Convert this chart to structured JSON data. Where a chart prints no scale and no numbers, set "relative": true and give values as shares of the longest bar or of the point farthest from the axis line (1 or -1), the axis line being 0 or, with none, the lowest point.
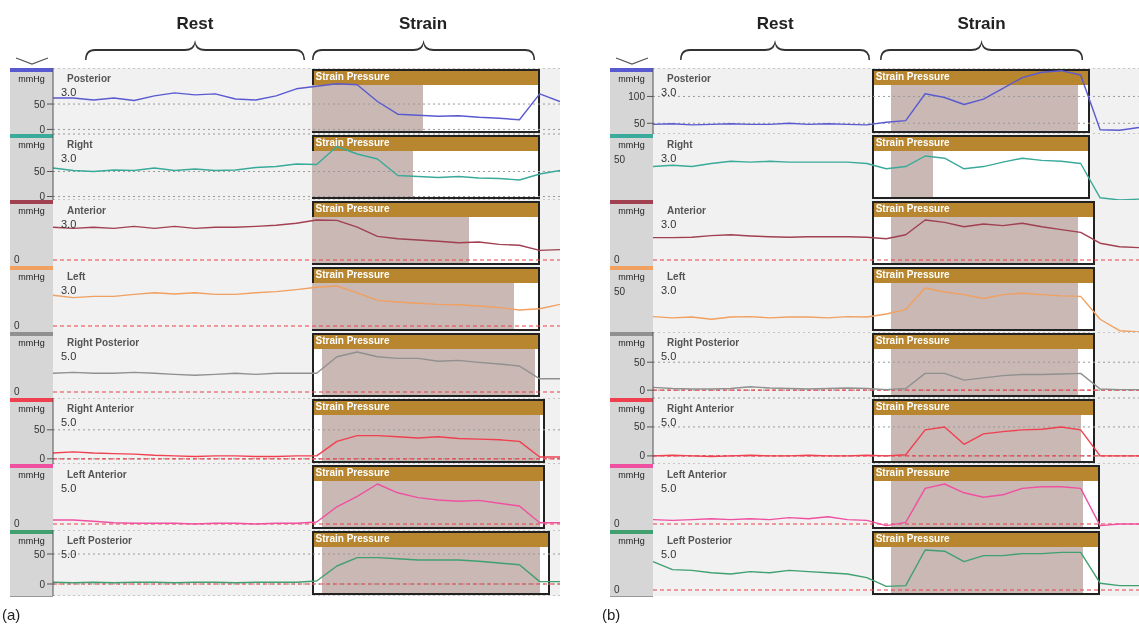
{
  "chart_data": [
    {
      "type": "line",
      "ylabel": "mmHg",
      "grid": "y",
      "categories": [
        null,
        null,
        null,
        null,
        null,
        null,
        null,
        null,
        null,
        null,
        null,
        null,
        null,
        null,
        null,
        null,
        null,
        null,
        null,
        null,
        null,
        null,
        null,
        null,
        null,
        null
      ],
      "ylim": [
        -9,
        121
      ],
      "yticks": [
        0,
        50
      ],
      "series": [
        {
          "name": "Posterior",
          "color": "#5a5ad0",
          "values": [
            62,
            62,
            58,
            62,
            57,
            66,
            72,
            68,
            70,
            60,
            58,
            66,
            80,
            85,
            90,
            88,
            55,
            30,
            28,
            26,
            27,
            24,
            22,
            19,
            70,
            55
          ]
        }
      ],
      "annotations": [
        "3.0",
        "Strain Pressure",
        "Rest",
        "Strain"
      ]
    },
    {
      "type": "line",
      "ylabel": "mmHg",
      "grid": "y",
      "categories": [
        null,
        null,
        null,
        null,
        null,
        null,
        null,
        null,
        null,
        null,
        null,
        null,
        null,
        null,
        null,
        null,
        null,
        null,
        null,
        null,
        null,
        null,
        null,
        null,
        null,
        null
      ],
      "ylim": [
        -7,
        125
      ],
      "yticks": [
        0,
        50
      ],
      "series": [
        {
          "name": "Right",
          "color": "#3aaa9a",
          "values": [
            57,
            52,
            50,
            53,
            52,
            57,
            52,
            55,
            52,
            53,
            58,
            60,
            65,
            64,
            100,
            85,
            75,
            42,
            40,
            38,
            40,
            37,
            36,
            33,
            45,
            52
          ]
        }
      ],
      "annotations": [
        "3.0",
        "Strain Pressure"
      ]
    },
    {
      "type": "line",
      "ylabel": "mmHg",
      "relative": true,
      "categories": [
        null,
        null,
        null,
        null,
        null,
        null,
        null,
        null,
        null,
        null,
        null,
        null,
        null,
        null,
        null,
        null,
        null,
        null,
        null,
        null,
        null,
        null,
        null,
        null,
        null,
        null
      ],
      "series": [
        {
          "name": "Anterior",
          "color": "#a04050",
          "values": [
            0.82,
            0.79,
            0.82,
            0.79,
            0.84,
            0.79,
            0.84,
            0.79,
            0.82,
            0.82,
            0.84,
            0.87,
            0.92,
            1,
            0.99,
            0.82,
            0.59,
            0.53,
            0.5,
            0.47,
            0.43,
            0.45,
            0.39,
            0.37,
            0.24,
            0.26
          ]
        }
      ],
      "ref_lines": [
        {
          "axis": "y",
          "value": 0,
          "color": "#e8404a",
          "line_style": "dashed"
        }
      ],
      "annotations": [
        "3.0",
        "Strain Pressure",
        "0"
      ]
    },
    {
      "type": "line",
      "ylabel": "mmHg",
      "relative": true,
      "categories": [
        null,
        null,
        null,
        null,
        null,
        null,
        null,
        null,
        null,
        null,
        null,
        null,
        null,
        null,
        null,
        null,
        null,
        null,
        null,
        null,
        null,
        null,
        null,
        null,
        null,
        null
      ],
      "series": [
        {
          "name": "Left",
          "color": "#f0a060",
          "values": [
            0.77,
            0.71,
            0.74,
            0.74,
            0.79,
            0.83,
            0.8,
            0.83,
            0.79,
            0.79,
            0.83,
            0.86,
            0.91,
            0.97,
            1,
            0.83,
            0.64,
            0.6,
            0.57,
            0.54,
            0.53,
            0.5,
            0.46,
            0.4,
            0.43,
            0.54
          ]
        }
      ],
      "ref_lines": [
        {
          "axis": "y",
          "value": 0,
          "color": "#e8404a",
          "line_style": "dashed"
        }
      ],
      "annotations": [
        "3.0",
        "Strain Pressure",
        "0"
      ]
    },
    {
      "type": "line",
      "ylabel": "mmHg",
      "relative": true,
      "categories": [
        null,
        null,
        null,
        null,
        null,
        null,
        null,
        null,
        null,
        null,
        null,
        null,
        null,
        null,
        null,
        null,
        null,
        null,
        null,
        null,
        null,
        null,
        null,
        null,
        null,
        null
      ],
      "series": [
        {
          "name": "Right Posterior",
          "color": "#909090",
          "values": [
            0.47,
            0.49,
            0.47,
            0.47,
            0.49,
            0.47,
            0.44,
            0.42,
            0.44,
            0.47,
            0.44,
            0.47,
            0.47,
            0.47,
            0.88,
            1,
            0.88,
            0.84,
            0.84,
            0.77,
            0.79,
            0.74,
            0.7,
            0.65,
            0.33,
            0.33
          ]
        }
      ],
      "ref_lines": [
        {
          "axis": "y",
          "value": 0,
          "color": "#e8404a",
          "line_style": "dashed"
        }
      ],
      "annotations": [
        "5.0",
        "Strain Pressure",
        "0"
      ]
    },
    {
      "type": "line",
      "ylabel": "mmHg",
      "grid": "y",
      "categories": [
        null,
        null,
        null,
        null,
        null,
        null,
        null,
        null,
        null,
        null,
        null,
        null,
        null,
        null,
        null,
        null,
        null,
        null,
        null,
        null,
        null,
        null,
        null,
        null,
        null,
        null
      ],
      "ylim": [
        -9,
        105
      ],
      "yticks": [
        0,
        50
      ],
      "series": [
        {
          "name": "Right Anterior",
          "color": "#f04050",
          "values": [
            10,
            12,
            10,
            9,
            8,
            6,
            5,
            4,
            5,
            5,
            4,
            4,
            5,
            5,
            30,
            40,
            40,
            38,
            36,
            38,
            35,
            34,
            33,
            30,
            3,
            3
          ]
        }
      ],
      "ref_lines": [
        {
          "axis": "y",
          "value": 0,
          "color": "#e8404a",
          "line_style": "dashed"
        }
      ],
      "annotations": [
        "5.0",
        "Strain Pressure"
      ]
    },
    {
      "type": "line",
      "ylabel": "mmHg",
      "relative": true,
      "categories": [
        null,
        null,
        null,
        null,
        null,
        null,
        null,
        null,
        null,
        null,
        null,
        null,
        null,
        null,
        null,
        null,
        null,
        null,
        null,
        null,
        null,
        null,
        null,
        null,
        null,
        null
      ],
      "series": [
        {
          "name": "Left Anterior",
          "color": "#f050a0",
          "values": [
            0.1,
            0.1,
            0.07,
            0.03,
            0.02,
            0.02,
            0.02,
            0,
            0.02,
            0.02,
            0,
            0.02,
            0.02,
            0.05,
            0.43,
            0.69,
            1,
            0.78,
            0.66,
            0.6,
            0.57,
            0.59,
            0.52,
            0.45,
            0.03,
            0.03
          ]
        }
      ],
      "ref_lines": [
        {
          "axis": "y",
          "value": 0,
          "color": "#e8404a",
          "line_style": "dashed"
        }
      ],
      "annotations": [
        "5.0",
        "Strain Pressure",
        "0"
      ]
    },
    {
      "type": "line",
      "ylabel": "mmHg",
      "grid": "y",
      "categories": [
        null,
        null,
        null,
        null,
        null,
        null,
        null,
        null,
        null,
        null,
        null,
        null,
        null,
        null,
        null,
        null,
        null,
        null,
        null,
        null,
        null,
        null,
        null,
        null,
        null,
        null
      ],
      "ylim": [
        -20,
        90
      ],
      "yticks": [
        0,
        50
      ],
      "series": [
        {
          "name": "Left Posterior",
          "color": "#40a070",
          "values": [
            3,
            2,
            3,
            2,
            3,
            3,
            2,
            3,
            3,
            2,
            3,
            3,
            3,
            5,
            30,
            44,
            44,
            42,
            40,
            40,
            40,
            38,
            35,
            32,
            4,
            4
          ]
        }
      ],
      "ref_lines": [
        {
          "axis": "y",
          "value": 0,
          "color": "#e8404a",
          "line_style": "dashed"
        }
      ],
      "annotations": [
        "5.0",
        "Strain Pressure",
        "(a)"
      ]
    },
    {
      "type": "line",
      "ylabel": "mmHg",
      "grid": "y",
      "categories": [
        null,
        null,
        null,
        null,
        null,
        null,
        null,
        null,
        null,
        null,
        null,
        null,
        null,
        null,
        null,
        null,
        null,
        null,
        null,
        null,
        null,
        null,
        null,
        null,
        null,
        null
      ],
      "ylim": [
        30,
        153
      ],
      "yticks": [
        50,
        100
      ],
      "series": [
        {
          "name": "Posterior",
          "color": "#5a5ad0",
          "values": [
            48,
            49,
            47,
            48,
            49,
            48,
            48,
            50,
            48,
            49,
            48,
            47,
            52,
            55,
            105,
            98,
            85,
            95,
            115,
            135,
            145,
            148,
            140,
            38,
            37,
            42
          ]
        }
      ],
      "annotations": [
        "3.0",
        "Strain Pressure",
        "Rest",
        "Strain"
      ]
    },
    {
      "type": "line",
      "ylabel": "mmHg",
      "relative": true,
      "categories": [
        null,
        null,
        null,
        null,
        null,
        null,
        null,
        null,
        null,
        null,
        null,
        null,
        null,
        null,
        null,
        null,
        null,
        null,
        null,
        null,
        null,
        null,
        null,
        null,
        null,
        null
      ],
      "series": [
        {
          "name": "Right",
          "color": "#3aaa9a",
          "values": [
            0.76,
            0.79,
            0.76,
            0.83,
            0.88,
            0.86,
            0.88,
            0.86,
            0.86,
            0.86,
            0.86,
            0.83,
            0.71,
            0.76,
            1,
            0.95,
            0.71,
            0.76,
            0.86,
            0.95,
            0.9,
            0.88,
            0.83,
            0.05,
            0,
            0.02
          ]
        }
      ],
      "annotations": [
        "3.0",
        "Strain Pressure",
        "50"
      ]
    },
    {
      "type": "line",
      "ylabel": "mmHg",
      "relative": true,
      "categories": [
        null,
        null,
        null,
        null,
        null,
        null,
        null,
        null,
        null,
        null,
        null,
        null,
        null,
        null,
        null,
        null,
        null,
        null,
        null,
        null,
        null,
        null,
        null,
        null,
        null,
        null
      ],
      "series": [
        {
          "name": "Anterior",
          "color": "#a04050",
          "values": [
            0.56,
            0.56,
            0.57,
            0.61,
            0.63,
            0.6,
            0.58,
            0.57,
            0.58,
            0.58,
            0.58,
            0.57,
            0.53,
            0.63,
            1,
            0.94,
            0.83,
            0.9,
            0.86,
            0.92,
            0.83,
            0.76,
            0.69,
            0.42,
            0.33,
            0.31
          ]
        }
      ],
      "ref_lines": [
        {
          "axis": "y",
          "value": 0,
          "color": "#e8404a",
          "line_style": "dashed"
        }
      ],
      "annotations": [
        "3.0",
        "Strain Pressure",
        "0"
      ]
    },
    {
      "type": "line",
      "ylabel": "mmHg",
      "relative": true,
      "categories": [
        null,
        null,
        null,
        null,
        null,
        null,
        null,
        null,
        null,
        null,
        null,
        null,
        null,
        null,
        null,
        null,
        null,
        null,
        null,
        null,
        null,
        null,
        null,
        null,
        null,
        null
      ],
      "series": [
        {
          "name": "Left",
          "color": "#f0a060",
          "values": [
            0.35,
            0.32,
            0.34,
            0.29,
            0.34,
            0.35,
            0.32,
            0.34,
            0.34,
            0.32,
            0.35,
            0.34,
            0.41,
            0.51,
            1,
            0.91,
            0.85,
            0.76,
            0.85,
            0.88,
            0.85,
            0.82,
            0.81,
            0.29,
            0.03,
            0
          ]
        }
      ],
      "annotations": [
        "3.0",
        "Strain Pressure",
        "50"
      ]
    },
    {
      "type": "line",
      "ylabel": "mmHg",
      "grid": "y",
      "categories": [
        null,
        null,
        null,
        null,
        null,
        null,
        null,
        null,
        null,
        null,
        null,
        null,
        null,
        null,
        null,
        null,
        null,
        null,
        null,
        null,
        null,
        null,
        null,
        null,
        null,
        null
      ],
      "ylim": [
        -14,
        104
      ],
      "yticks": [
        0,
        50
      ],
      "series": [
        {
          "name": "Right Posterior",
          "color": "#909090",
          "values": [
            5,
            3,
            2,
            2,
            3,
            6,
            4,
            3,
            2,
            3,
            4,
            3,
            1,
            3,
            30,
            30,
            18,
            22,
            26,
            28,
            28,
            29,
            30,
            2,
            1,
            1
          ]
        }
      ],
      "ref_lines": [
        {
          "axis": "y",
          "value": 0,
          "color": "#e8404a",
          "line_style": "dashed"
        }
      ],
      "annotations": [
        "5.0",
        "Strain Pressure"
      ]
    },
    {
      "type": "line",
      "ylabel": "mmHg",
      "grid": "y",
      "categories": [
        null,
        null,
        null,
        null,
        null,
        null,
        null,
        null,
        null,
        null,
        null,
        null,
        null,
        null,
        null,
        null,
        null,
        null,
        null,
        null,
        null,
        null,
        null,
        null,
        null,
        null
      ],
      "ylim": [
        -14,
        100
      ],
      "yticks": [
        0,
        50
      ],
      "series": [
        {
          "name": "Right Anterior",
          "color": "#f04050",
          "values": [
            0,
            1,
            0,
            -1,
            0,
            1,
            0,
            0,
            1,
            0,
            0,
            1,
            0,
            2,
            45,
            50,
            20,
            38,
            42,
            45,
            46,
            50,
            45,
            0,
            0,
            0
          ]
        }
      ],
      "ref_lines": [
        {
          "axis": "y",
          "value": 0,
          "color": "#e8404a",
          "line_style": "dashed"
        }
      ],
      "annotations": [
        "5.0",
        "Strain Pressure"
      ]
    },
    {
      "type": "line",
      "ylabel": "mmHg",
      "relative": true,
      "categories": [
        null,
        null,
        null,
        null,
        null,
        null,
        null,
        null,
        null,
        null,
        null,
        null,
        null,
        null,
        null,
        null,
        null,
        null,
        null,
        null,
        null,
        null,
        null,
        null,
        null,
        null
      ],
      "series": [
        {
          "name": "Left Anterior",
          "color": "#f050a0",
          "values": [
            0.11,
            0.09,
            0.11,
            0.13,
            0.11,
            0.13,
            0.11,
            0.16,
            0.13,
            0.18,
            0.11,
            0.09,
            -0.04,
            0.04,
            0.89,
            1,
            0.78,
            0.67,
            0.73,
            0.89,
            0.93,
            0.93,
            0.89,
            -0.04,
            0,
            0
          ]
        }
      ],
      "ref_lines": [
        {
          "axis": "y",
          "value": 0,
          "color": "#e8404a",
          "line_style": "dashed"
        }
      ],
      "annotations": [
        "5.0",
        "Strain Pressure",
        "0"
      ]
    },
    {
      "type": "line",
      "ylabel": "mmHg",
      "relative": true,
      "categories": [
        null,
        null,
        null,
        null,
        null,
        null,
        null,
        null,
        null,
        null,
        null,
        null,
        null,
        null,
        null,
        null,
        null,
        null,
        null,
        null,
        null,
        null,
        null,
        null,
        null,
        null
      ],
      "series": [
        {
          "name": "Left Posterior",
          "color": "#40a070",
          "values": [
            0.71,
            0.51,
            0.49,
            0.43,
            0.4,
            0.46,
            0.43,
            0.49,
            0.46,
            0.43,
            0.4,
            0.31,
            0.09,
            0.11,
            1,
            0.97,
            0.71,
            0.86,
            0.86,
            0.91,
            0.91,
            0.94,
            0.94,
            0.17,
            0.11,
            0.11
          ]
        }
      ],
      "ref_lines": [
        {
          "axis": "y",
          "value": 0,
          "color": "#e8404a",
          "line_style": "dashed"
        }
      ],
      "annotations": [
        "5.0",
        "Strain Pressure",
        "0",
        "(b)"
      ]
    }
  ]
}
